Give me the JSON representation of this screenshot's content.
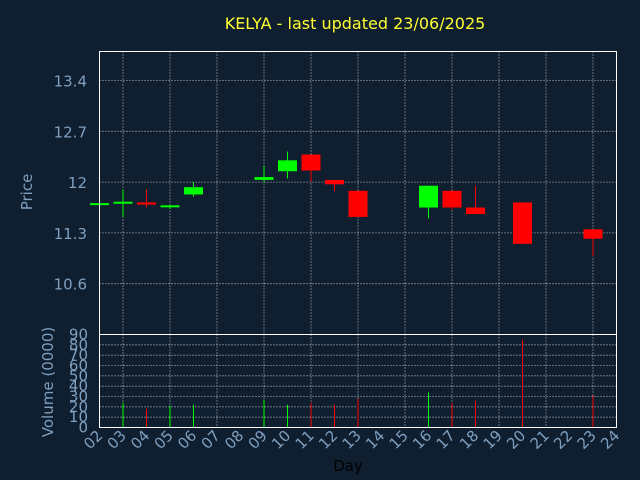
{
  "page": {
    "title": "KELYA - last updated 23/06/2025"
  },
  "colors": {
    "background": "#0f1f30",
    "up": "#00ff00",
    "down": "#ff0000",
    "axis": "#7f9fbf",
    "title": "#ffff33",
    "grid": "#ffffff"
  },
  "chart_data": [
    {
      "type": "candlestick",
      "ylabel": "Price",
      "ylim": [
        9.9,
        13.8
      ],
      "yticks": [
        "13.4",
        "12.7",
        "12",
        "11.3",
        "10.6"
      ],
      "grid": true,
      "candles": [
        {
          "day": "02",
          "open": 11.71,
          "close": 11.71,
          "high": 11.71,
          "low": 11.71
        },
        {
          "day": "03",
          "open": 11.71,
          "close": 11.73,
          "high": 11.9,
          "low": 11.52
        },
        {
          "day": "04",
          "open": 11.72,
          "close": 11.69,
          "high": 11.9,
          "low": 11.65
        },
        {
          "day": "05",
          "open": 11.66,
          "close": 11.68,
          "high": 11.68,
          "low": 11.63
        },
        {
          "day": "06",
          "open": 11.83,
          "close": 11.93,
          "high": 12.0,
          "low": 11.8
        },
        {
          "day": "09",
          "open": 12.03,
          "close": 12.07,
          "high": 12.22,
          "low": 12.0
        },
        {
          "day": "10",
          "open": 12.15,
          "close": 12.3,
          "high": 12.42,
          "low": 12.05
        },
        {
          "day": "11",
          "open": 12.38,
          "close": 12.16,
          "high": 12.38,
          "low": 12.0
        },
        {
          "day": "12",
          "open": 12.03,
          "close": 11.97,
          "high": 12.03,
          "low": 11.88
        },
        {
          "day": "13",
          "open": 11.88,
          "close": 11.52,
          "high": 11.88,
          "low": 11.52
        },
        {
          "day": "16",
          "open": 11.65,
          "close": 11.95,
          "high": 11.95,
          "low": 11.5
        },
        {
          "day": "17",
          "open": 11.88,
          "close": 11.65,
          "high": 11.88,
          "low": 11.62
        },
        {
          "day": "18",
          "open": 11.65,
          "close": 11.56,
          "high": 11.95,
          "low": 11.56
        },
        {
          "day": "20",
          "open": 11.72,
          "close": 11.15,
          "high": 11.72,
          "low": 11.15
        },
        {
          "day": "23",
          "open": 11.35,
          "close": 11.22,
          "high": 11.35,
          "low": 10.98
        }
      ]
    },
    {
      "type": "bar",
      "ylabel": "Volume (0000)",
      "xlabel": "Day",
      "ylim": [
        0,
        90
      ],
      "yticks": [
        "90",
        "80",
        "70",
        "60",
        "50",
        "40",
        "30",
        "20",
        "10",
        "0"
      ],
      "xticks": [
        "02",
        "03",
        "04",
        "05",
        "06",
        "07",
        "08",
        "09",
        "10",
        "11",
        "12",
        "13",
        "14",
        "15",
        "16",
        "17",
        "18",
        "19",
        "20",
        "21",
        "22",
        "23",
        "24"
      ],
      "volumes": [
        {
          "day": "03",
          "value": 24,
          "dir": "up"
        },
        {
          "day": "04",
          "value": 18,
          "dir": "down"
        },
        {
          "day": "05",
          "value": 21,
          "dir": "up"
        },
        {
          "day": "06",
          "value": 22,
          "dir": "up"
        },
        {
          "day": "09",
          "value": 27,
          "dir": "up"
        },
        {
          "day": "10",
          "value": 22,
          "dir": "up"
        },
        {
          "day": "11",
          "value": 24,
          "dir": "down"
        },
        {
          "day": "12",
          "value": 22,
          "dir": "down"
        },
        {
          "day": "13",
          "value": 28,
          "dir": "down"
        },
        {
          "day": "16",
          "value": 34,
          "dir": "up"
        },
        {
          "day": "17",
          "value": 24,
          "dir": "down"
        },
        {
          "day": "18",
          "value": 26,
          "dir": "down"
        },
        {
          "day": "20",
          "value": 85,
          "dir": "down"
        },
        {
          "day": "23",
          "value": 31,
          "dir": "down"
        }
      ]
    }
  ]
}
